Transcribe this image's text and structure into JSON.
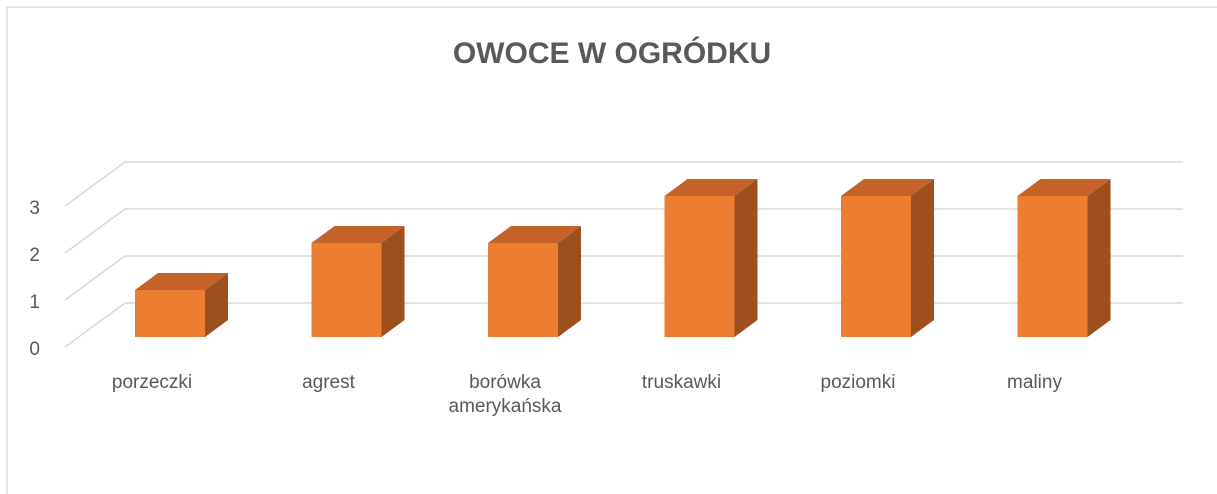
{
  "chart_data": {
    "type": "bar3d",
    "title": "OWOCE W OGRÓDKU",
    "categories": [
      "porzeczki",
      "agrest",
      "borówka amerykańska",
      "truskawki",
      "poziomki",
      "maliny"
    ],
    "values": [
      1,
      2,
      2,
      3,
      3,
      3
    ],
    "color": "#ED7D31",
    "ylim": [
      0,
      3
    ],
    "yticks": [
      0,
      1,
      2,
      3
    ],
    "grid": true
  }
}
